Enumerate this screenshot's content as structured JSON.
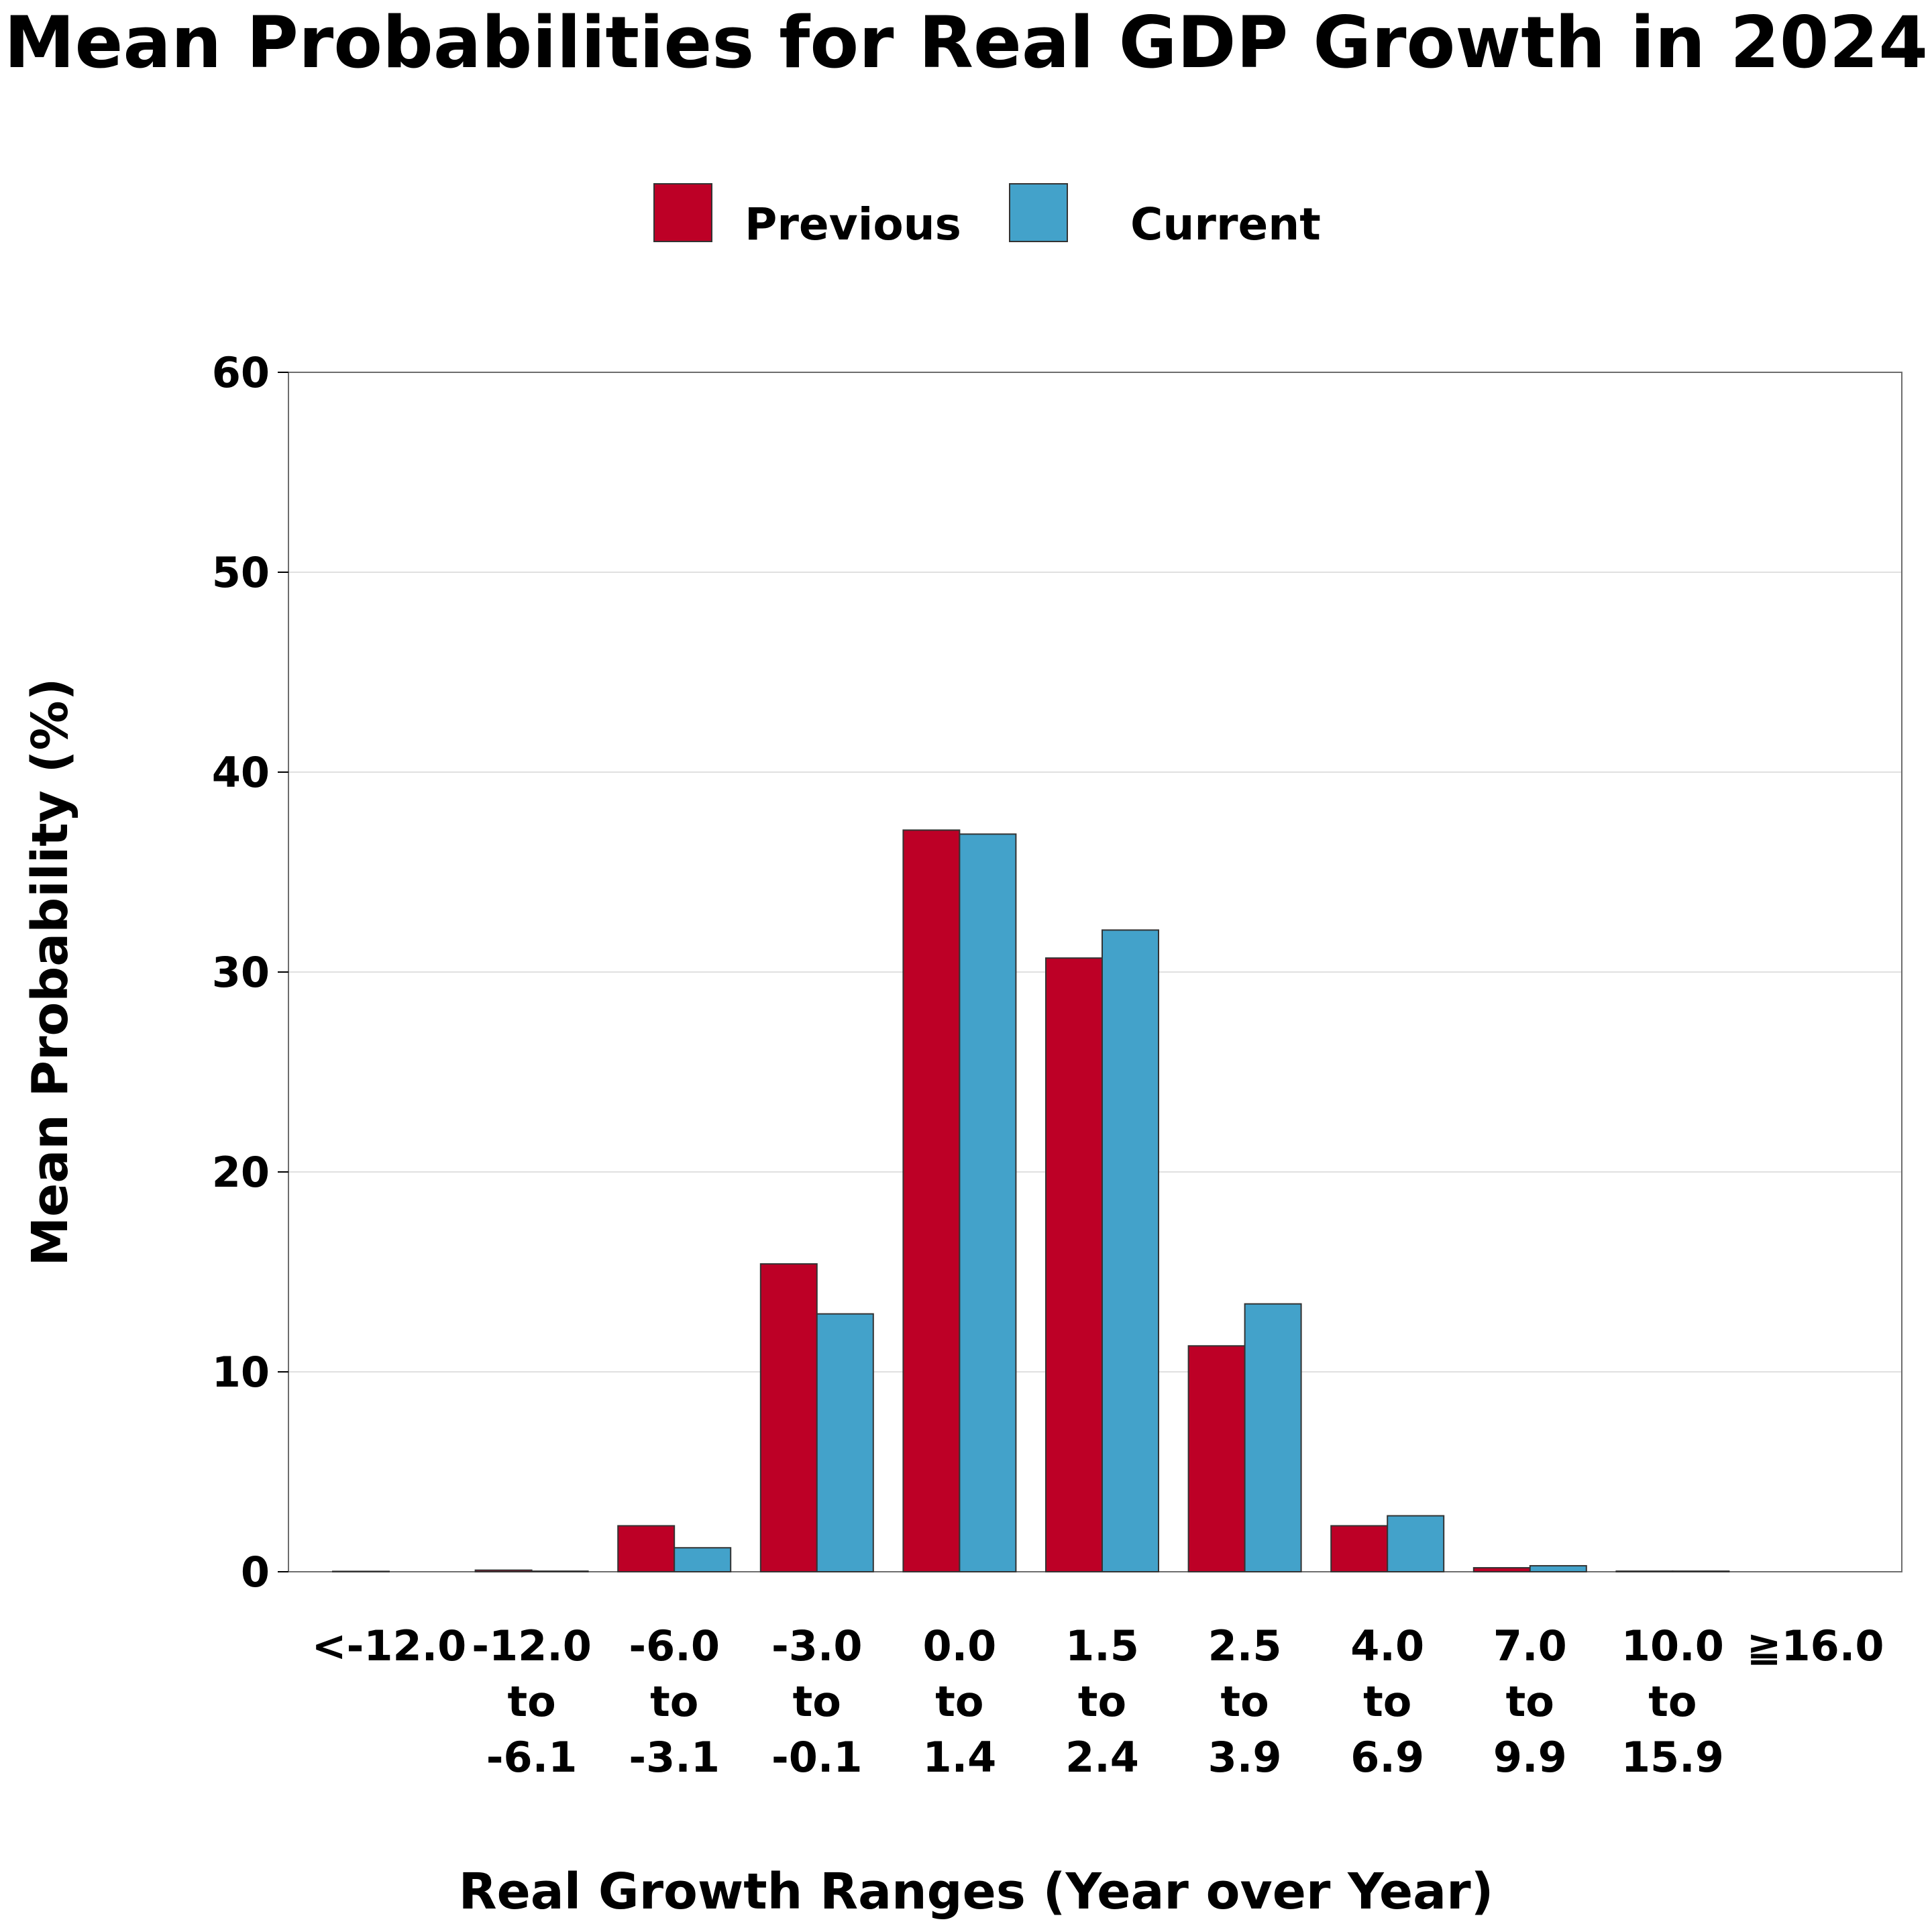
{
  "chart_data": {
    "type": "bar",
    "title": "Mean Probabilities for Real GDP Growth in 2024",
    "xlabel": "Real Growth Ranges (Year over Year)",
    "ylabel": "Mean Probability (%)",
    "ylim": [
      0,
      60
    ],
    "yticks": [
      "0",
      "10",
      "20",
      "30",
      "40",
      "50",
      "60"
    ],
    "grid": true,
    "legend_position": "top-center",
    "categories": [
      [
        "<-12.0"
      ],
      [
        "-12.0",
        "to",
        "-6.1"
      ],
      [
        "-6.0",
        "to",
        "-3.1"
      ],
      [
        "-3.0",
        "to",
        "-0.1"
      ],
      [
        "0.0",
        "to",
        "1.4"
      ],
      [
        "1.5",
        "to",
        "2.4"
      ],
      [
        "2.5",
        "to",
        "3.9"
      ],
      [
        "4.0",
        "to",
        "6.9"
      ],
      [
        "7.0",
        "to",
        "9.9"
      ],
      [
        "10.0",
        "to",
        "15.9"
      ],
      [
        "≧16.0"
      ]
    ],
    "series": [
      {
        "name": "Previous",
        "color": "#BD0026",
        "values": [
          0.02,
          0.08,
          2.3,
          15.4,
          37.1,
          30.7,
          11.3,
          2.3,
          0.2,
          0.03,
          0.0
        ]
      },
      {
        "name": "Current",
        "color": "#43A2CA",
        "values": [
          0.0,
          0.03,
          1.2,
          12.9,
          36.9,
          32.1,
          13.4,
          2.8,
          0.3,
          0.03,
          0.0
        ]
      }
    ]
  }
}
